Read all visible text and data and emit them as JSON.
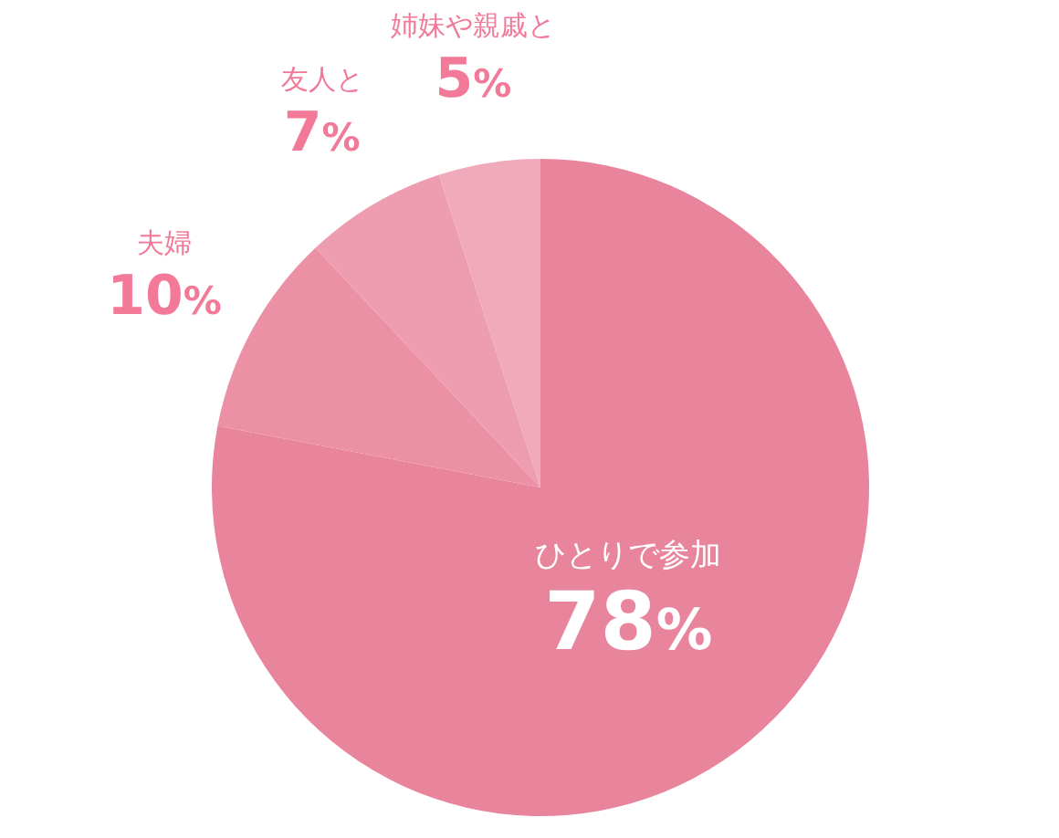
{
  "chart_data": {
    "type": "pie",
    "categories": [
      "ひとりで参加",
      "夫婦",
      "友人と",
      "姉妹や親戚と"
    ],
    "values": [
      78,
      10,
      7,
      5
    ],
    "colors": [
      "#e8849c",
      "#ec90a6",
      "#ee9db0",
      "#f0aabb"
    ],
    "value_labels": [
      "78%",
      "10%",
      "7%",
      "5%"
    ],
    "legend": false
  }
}
